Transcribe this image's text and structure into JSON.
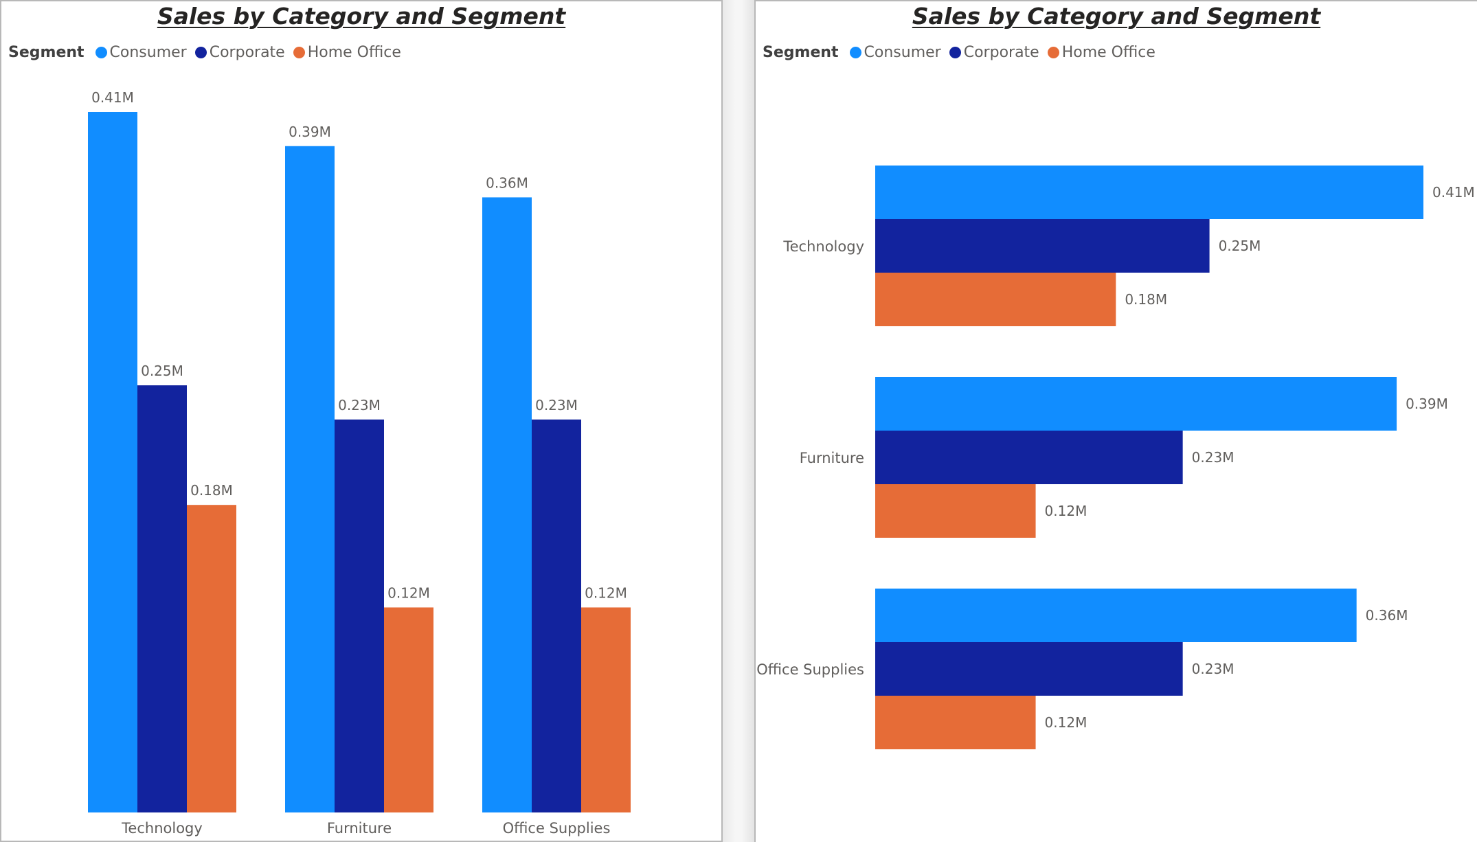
{
  "legend": {
    "title": "Segment"
  },
  "chart_data": [
    {
      "type": "bar",
      "orientation": "vertical",
      "title": "Sales by Category and Segment",
      "legend_title": "Segment",
      "legend_position": "top-left",
      "categories": [
        "Technology",
        "Furniture",
        "Office Supplies"
      ],
      "series": [
        {
          "name": "Consumer",
          "color": "#118dff",
          "values": [
            0.41,
            0.39,
            0.36
          ],
          "labels": [
            "0.41M",
            "0.39M",
            "0.36M"
          ]
        },
        {
          "name": "Corporate",
          "color": "#12239e",
          "values": [
            0.25,
            0.23,
            0.23
          ],
          "labels": [
            "0.25M",
            "0.23M",
            "0.23M"
          ]
        },
        {
          "name": "Home Office",
          "color": "#e66c37",
          "values": [
            0.18,
            0.12,
            0.12
          ],
          "labels": [
            "0.18M",
            "0.12M",
            "0.12M"
          ]
        }
      ],
      "unit": "M",
      "ylim": [
        0,
        0.41
      ],
      "grid": false
    },
    {
      "type": "bar",
      "orientation": "horizontal",
      "title": "Sales by Category and Segment",
      "legend_title": "Segment",
      "legend_position": "top-left",
      "categories": [
        "Technology",
        "Furniture",
        "Office Supplies"
      ],
      "series": [
        {
          "name": "Consumer",
          "color": "#118dff",
          "values": [
            0.41,
            0.39,
            0.36
          ],
          "labels": [
            "0.41M",
            "0.39M",
            "0.36M"
          ]
        },
        {
          "name": "Corporate",
          "color": "#12239e",
          "values": [
            0.25,
            0.23,
            0.23
          ],
          "labels": [
            "0.25M",
            "0.23M",
            "0.23M"
          ]
        },
        {
          "name": "Home Office",
          "color": "#e66c37",
          "values": [
            0.18,
            0.12,
            0.12
          ],
          "labels": [
            "0.18M",
            "0.12M",
            "0.12M"
          ]
        }
      ],
      "unit": "M",
      "xlim": [
        0,
        0.41
      ],
      "grid": false
    }
  ]
}
